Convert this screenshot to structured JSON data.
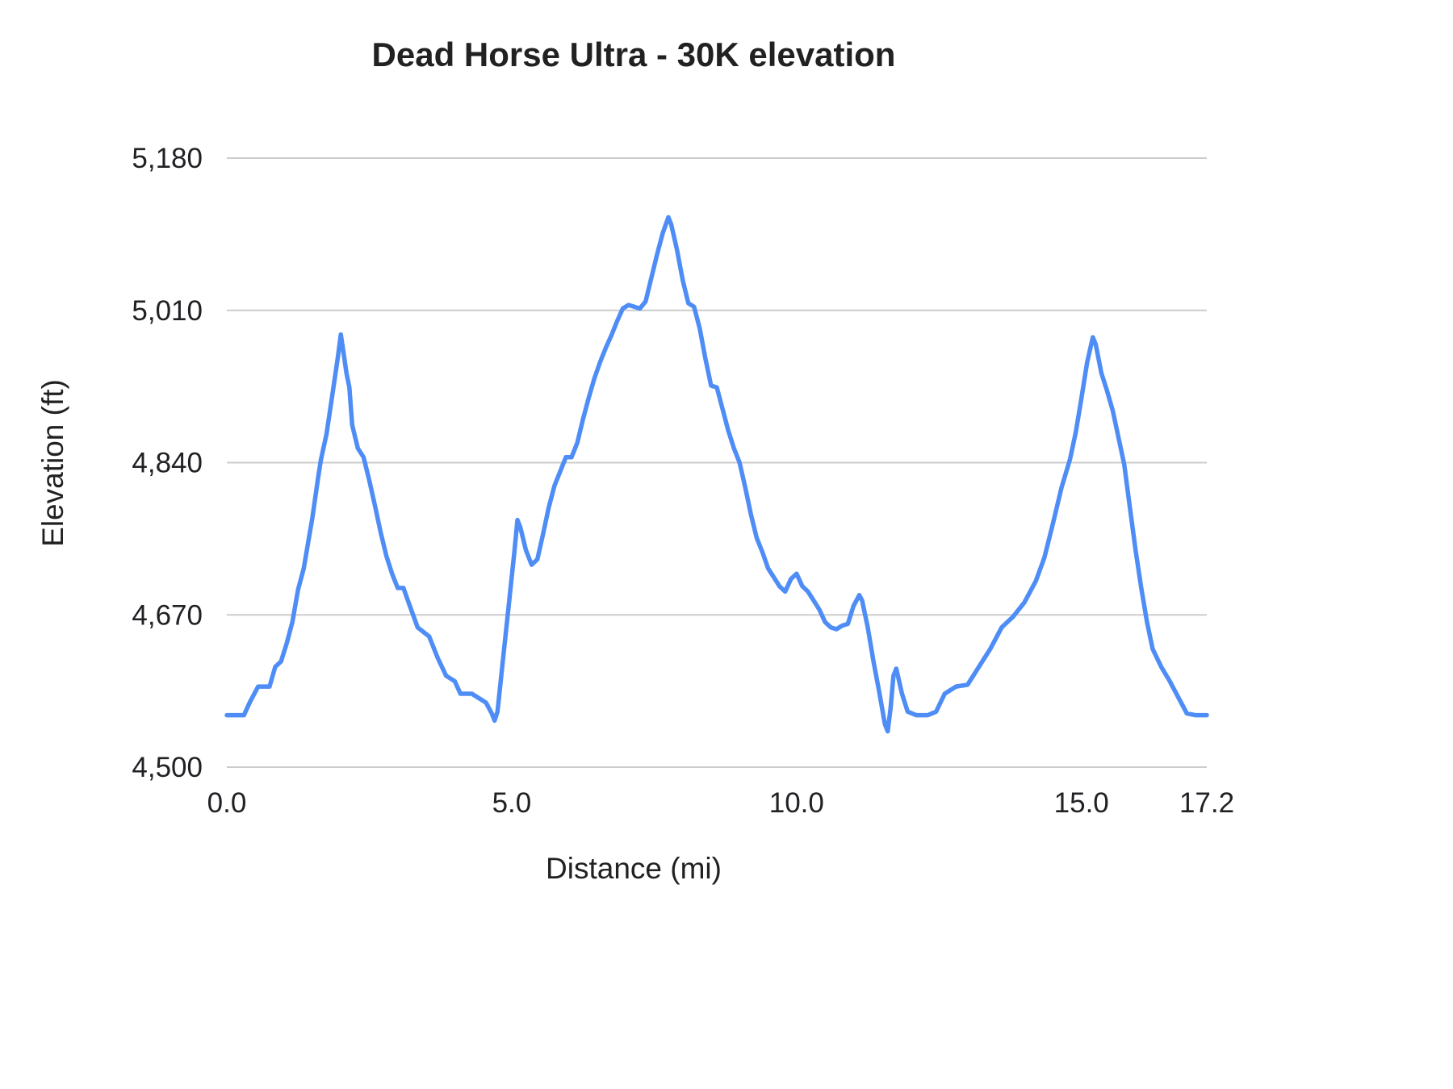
{
  "chart_data": {
    "type": "line",
    "title": "Dead Horse Ultra - 30K elevation",
    "xlabel": "Distance (mi)",
    "ylabel": "Elevation (ft)",
    "xlim": [
      0,
      17.2
    ],
    "ylim": [
      4500,
      5180
    ],
    "grid": "horizontal",
    "legend": "none",
    "line_color": "#4f8df6",
    "grid_color": "#cccccc",
    "text_color": "#202124",
    "x_ticks": {
      "values": [
        0,
        5,
        10,
        15,
        17.2
      ],
      "labels": [
        "0.0",
        "5.0",
        "10.0",
        "15.0",
        "17.2"
      ]
    },
    "y_ticks": {
      "values": [
        4500,
        4670,
        4840,
        5010,
        5180
      ],
      "labels": [
        "4,500",
        "4,670",
        "4,840",
        "5,010",
        "5,180"
      ]
    },
    "series": [
      {
        "name": "Elevation",
        "x": [
          0,
          0.3,
          0.4,
          0.55,
          0.75,
          0.85,
          0.95,
          1.05,
          1.15,
          1.25,
          1.35,
          1.5,
          1.6,
          1.65,
          1.75,
          1.85,
          1.95,
          2.0,
          2.05,
          2.1,
          2.15,
          2.2,
          2.3,
          2.4,
          2.5,
          2.6,
          2.7,
          2.8,
          2.9,
          3.0,
          3.1,
          3.2,
          3.35,
          3.55,
          3.7,
          3.85,
          4.0,
          4.1,
          4.3,
          4.55,
          4.65,
          4.7,
          4.75,
          4.85,
          4.95,
          5.05,
          5.1,
          5.15,
          5.25,
          5.35,
          5.45,
          5.55,
          5.65,
          5.75,
          5.85,
          5.95,
          6.05,
          6.15,
          6.25,
          6.35,
          6.45,
          6.55,
          6.65,
          6.75,
          6.85,
          6.95,
          7.05,
          7.15,
          7.25,
          7.35,
          7.45,
          7.55,
          7.65,
          7.75,
          7.8,
          7.9,
          8.0,
          8.1,
          8.2,
          8.3,
          8.4,
          8.5,
          8.6,
          8.7,
          8.8,
          8.9,
          9.0,
          9.1,
          9.2,
          9.3,
          9.4,
          9.5,
          9.6,
          9.7,
          9.8,
          9.9,
          10.0,
          10.1,
          10.2,
          10.3,
          10.4,
          10.5,
          10.6,
          10.7,
          10.8,
          10.9,
          11.0,
          11.1,
          11.15,
          11.25,
          11.35,
          11.45,
          11.55,
          11.6,
          11.65,
          11.7,
          11.75,
          11.85,
          11.95,
          12.1,
          12.3,
          12.45,
          12.6,
          12.8,
          13.0,
          13.2,
          13.4,
          13.6,
          13.8,
          14.0,
          14.2,
          14.35,
          14.5,
          14.65,
          14.8,
          14.9,
          15.0,
          15.1,
          15.2,
          15.25,
          15.35,
          15.45,
          15.55,
          15.65,
          15.75,
          15.85,
          15.95,
          16.05,
          16.15,
          16.25,
          16.4,
          16.55,
          16.7,
          16.85,
          17.0,
          17.2
        ],
        "y": [
          4558,
          4558,
          4572,
          4590,
          4590,
          4612,
          4618,
          4638,
          4662,
          4698,
          4722,
          4778,
          4822,
          4843,
          4872,
          4915,
          4958,
          4983,
          4962,
          4940,
          4924,
          4882,
          4856,
          4846,
          4820,
          4792,
          4762,
          4736,
          4716,
          4700,
          4700,
          4682,
          4656,
          4646,
          4622,
          4602,
          4596,
          4582,
          4582,
          4572,
          4560,
          4552,
          4562,
          4622,
          4682,
          4742,
          4776,
          4768,
          4742,
          4726,
          4732,
          4760,
          4790,
          4814,
          4830,
          4846,
          4846,
          4862,
          4888,
          4912,
          4934,
          4952,
          4968,
          4982,
          4998,
          5012,
          5016,
          5014,
          5012,
          5020,
          5046,
          5072,
          5096,
          5114,
          5106,
          5078,
          5044,
          5018,
          5014,
          4990,
          4956,
          4926,
          4924,
          4900,
          4876,
          4856,
          4840,
          4812,
          4782,
          4756,
          4740,
          4722,
          4712,
          4702,
          4696,
          4710,
          4716,
          4702,
          4696,
          4686,
          4676,
          4662,
          4656,
          4654,
          4658,
          4660,
          4680,
          4692,
          4686,
          4656,
          4618,
          4584,
          4548,
          4540,
          4566,
          4602,
          4610,
          4582,
          4562,
          4558,
          4558,
          4562,
          4582,
          4590,
          4592,
          4612,
          4632,
          4656,
          4668,
          4684,
          4708,
          4734,
          4772,
          4812,
          4844,
          4874,
          4912,
          4952,
          4980,
          4972,
          4940,
          4920,
          4898,
          4868,
          4838,
          4790,
          4742,
          4700,
          4662,
          4632,
          4612,
          4596,
          4578,
          4560,
          4558,
          4558
        ]
      }
    ]
  }
}
